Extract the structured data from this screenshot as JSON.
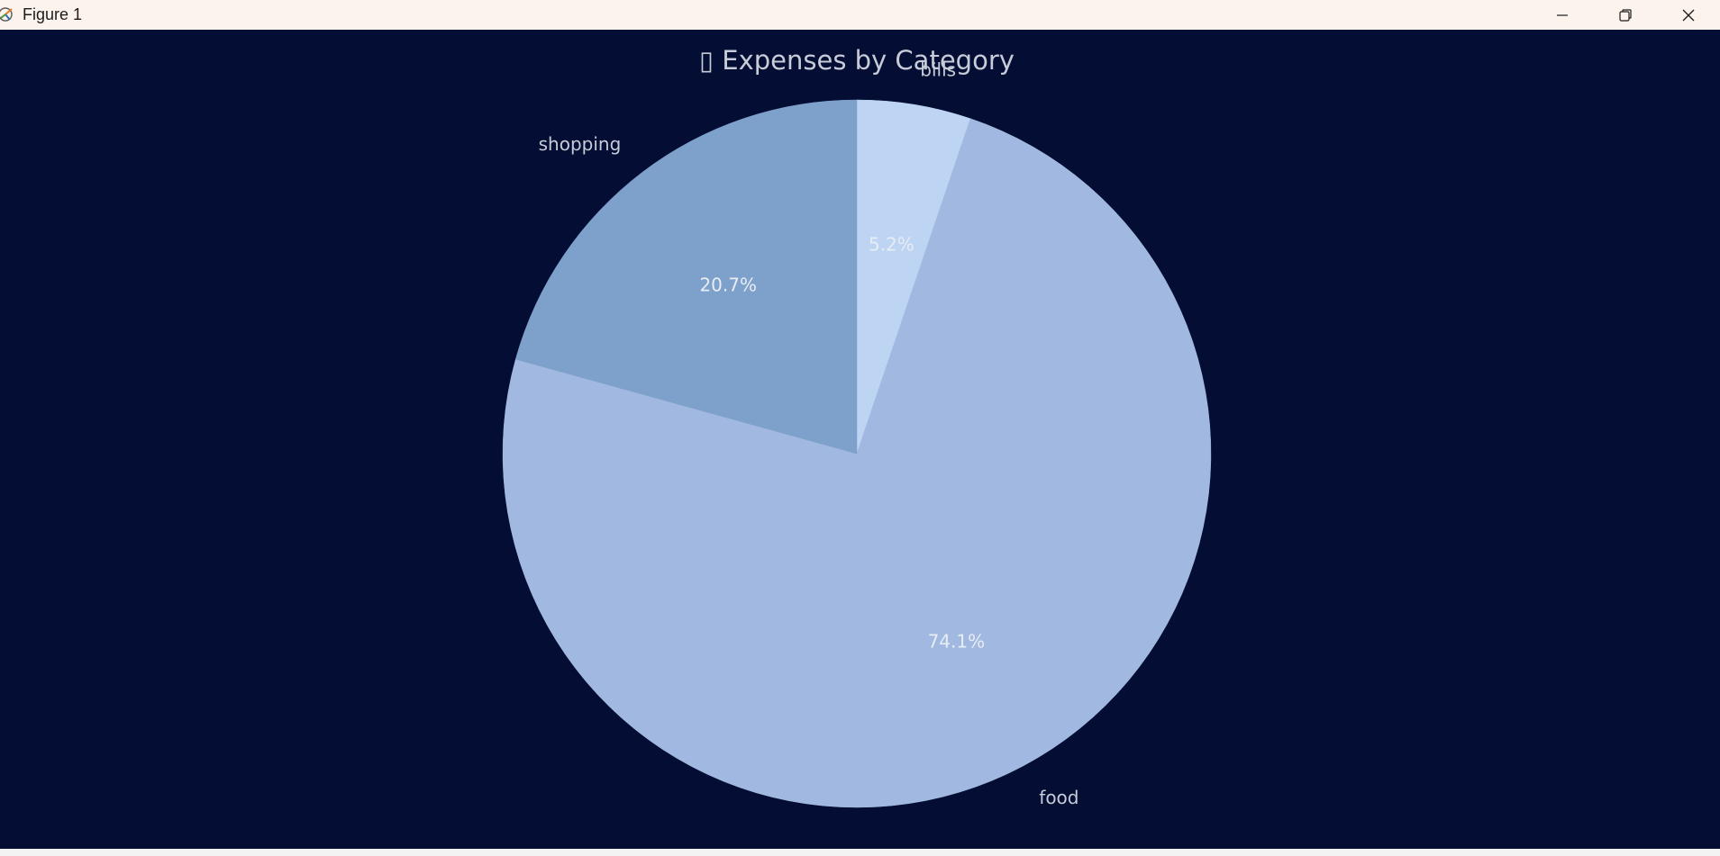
{
  "window": {
    "title": "Figure 1",
    "icons": {
      "app": "matplotlib-icon",
      "minimize": "minimize-icon",
      "maximize": "restore-icon",
      "close": "close-icon"
    }
  },
  "chart_data": {
    "type": "pie",
    "title": "▯ Expenses by Category",
    "labels": [
      "bills",
      "food",
      "shopping"
    ],
    "values": [
      5.2,
      74.1,
      20.7
    ],
    "percent_labels": [
      "5.2%",
      "74.1%",
      "20.7%"
    ],
    "colors": [
      "#bdd4f2",
      "#a1b9e0",
      "#7ea1cb"
    ],
    "start_angle_deg": 90,
    "direction": "clockwise",
    "background": "#040d33",
    "text_color": "#c7ccd8",
    "legend": "none"
  }
}
